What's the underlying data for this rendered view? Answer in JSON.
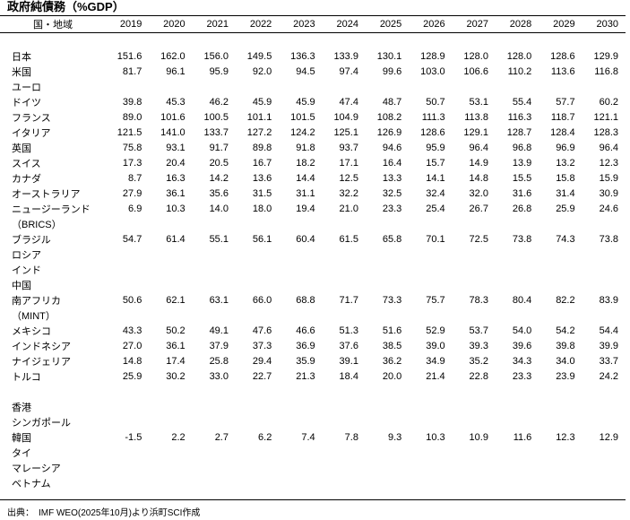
{
  "page": {
    "title": "政府純債務（%GDP）",
    "source": "出典：　IMF WEO(2025年10月)より浜町SCI作成"
  },
  "chart_data": {
    "type": "table",
    "title": "政府純債務（%GDP）",
    "row_header_label": "国・地域",
    "columns": [
      "2019",
      "2020",
      "2021",
      "2022",
      "2023",
      "2024",
      "2025",
      "2026",
      "2027",
      "2028",
      "2029",
      "2030"
    ],
    "rows": [
      {
        "label": "",
        "values": []
      },
      {
        "label": "日本",
        "values": [
          "151.6",
          "162.0",
          "156.0",
          "149.5",
          "136.3",
          "133.9",
          "130.1",
          "128.9",
          "128.0",
          "128.0",
          "128.6",
          "129.9"
        ]
      },
      {
        "label": "米国",
        "values": [
          "81.7",
          "96.1",
          "95.9",
          "92.0",
          "94.5",
          "97.4",
          "99.6",
          "103.0",
          "106.6",
          "110.2",
          "113.6",
          "116.8"
        ]
      },
      {
        "label": "ユーロ",
        "values": []
      },
      {
        "label": "ドイツ",
        "values": [
          "39.8",
          "45.3",
          "46.2",
          "45.9",
          "45.9",
          "47.4",
          "48.7",
          "50.7",
          "53.1",
          "55.4",
          "57.7",
          "60.2"
        ]
      },
      {
        "label": "フランス",
        "values": [
          "89.0",
          "101.6",
          "100.5",
          "101.1",
          "101.5",
          "104.9",
          "108.2",
          "111.3",
          "113.8",
          "116.3",
          "118.7",
          "121.1"
        ]
      },
      {
        "label": "イタリア",
        "values": [
          "121.5",
          "141.0",
          "133.7",
          "127.2",
          "124.2",
          "125.1",
          "126.9",
          "128.6",
          "129.1",
          "128.7",
          "128.4",
          "128.3"
        ]
      },
      {
        "label": "英国",
        "values": [
          "75.8",
          "93.1",
          "91.7",
          "89.8",
          "91.8",
          "93.7",
          "94.6",
          "95.9",
          "96.4",
          "96.8",
          "96.9",
          "96.4"
        ]
      },
      {
        "label": "スイス",
        "values": [
          "17.3",
          "20.4",
          "20.5",
          "16.7",
          "18.2",
          "17.1",
          "16.4",
          "15.7",
          "14.9",
          "13.9",
          "13.2",
          "12.3"
        ]
      },
      {
        "label": "カナダ",
        "values": [
          "8.7",
          "16.3",
          "14.2",
          "13.6",
          "14.4",
          "12.5",
          "13.3",
          "14.1",
          "14.8",
          "15.5",
          "15.8",
          "15.9"
        ]
      },
      {
        "label": "オーストラリア",
        "values": [
          "27.9",
          "36.1",
          "35.6",
          "31.5",
          "31.1",
          "32.2",
          "32.5",
          "32.4",
          "32.0",
          "31.6",
          "31.4",
          "30.9"
        ]
      },
      {
        "label": "ニュージーランド",
        "values": [
          "6.9",
          "10.3",
          "14.0",
          "18.0",
          "19.4",
          "21.0",
          "23.3",
          "25.4",
          "26.7",
          "26.8",
          "25.9",
          "24.6"
        ]
      },
      {
        "label": "（BRICS）",
        "values": []
      },
      {
        "label": "ブラジル",
        "values": [
          "54.7",
          "61.4",
          "55.1",
          "56.1",
          "60.4",
          "61.5",
          "65.8",
          "70.1",
          "72.5",
          "73.8",
          "74.3",
          "73.8"
        ]
      },
      {
        "label": "ロシア",
        "values": []
      },
      {
        "label": "インド",
        "values": []
      },
      {
        "label": "中国",
        "values": []
      },
      {
        "label": "南アフリカ",
        "values": [
          "50.6",
          "62.1",
          "63.1",
          "66.0",
          "68.8",
          "71.7",
          "73.3",
          "75.7",
          "78.3",
          "80.4",
          "82.2",
          "83.9"
        ]
      },
      {
        "label": "（MINT）",
        "values": []
      },
      {
        "label": "メキシコ",
        "values": [
          "43.3",
          "50.2",
          "49.1",
          "47.6",
          "46.6",
          "51.3",
          "51.6",
          "52.9",
          "53.7",
          "54.0",
          "54.2",
          "54.4"
        ]
      },
      {
        "label": "インドネシア",
        "values": [
          "27.0",
          "36.1",
          "37.9",
          "37.3",
          "36.9",
          "37.6",
          "38.5",
          "39.0",
          "39.3",
          "39.6",
          "39.8",
          "39.9"
        ]
      },
      {
        "label": "ナイジェリア",
        "values": [
          "14.8",
          "17.4",
          "25.8",
          "29.4",
          "35.9",
          "39.1",
          "36.2",
          "34.9",
          "35.2",
          "34.3",
          "34.0",
          "33.7"
        ]
      },
      {
        "label": "トルコ",
        "values": [
          "25.9",
          "30.2",
          "33.0",
          "22.7",
          "21.3",
          "18.4",
          "20.0",
          "21.4",
          "22.8",
          "23.3",
          "23.9",
          "24.2"
        ]
      },
      {
        "label": "",
        "values": []
      },
      {
        "label": "香港",
        "values": []
      },
      {
        "label": "シンガポール",
        "values": []
      },
      {
        "label": "韓国",
        "values": [
          "-1.5",
          "2.2",
          "2.7",
          "6.2",
          "7.4",
          "7.8",
          "9.3",
          "10.3",
          "10.9",
          "11.6",
          "12.3",
          "12.9"
        ]
      },
      {
        "label": "タイ",
        "values": []
      },
      {
        "label": "マレーシア",
        "values": []
      },
      {
        "label": "ベトナム",
        "values": []
      }
    ]
  }
}
